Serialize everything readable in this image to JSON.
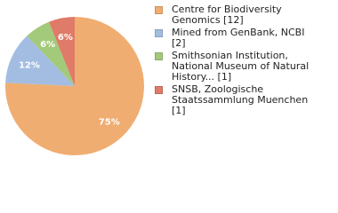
{
  "chart_data": {
    "type": "pie",
    "categories": [
      "Centre for Biodiversity Genomics [12]",
      "Mined from GenBank, NCBI [2]",
      "Smithsonian Institution, National Museum of Natural History... [1]",
      "SNSB, Zoologische Staatssammlung Muenchen [1]"
    ],
    "values": [
      75,
      12,
      6,
      6
    ],
    "value_labels": [
      "75%",
      "12%",
      "6%",
      "6%"
    ],
    "colors": [
      "#f0ad71",
      "#a3bde2",
      "#a3c97a",
      "#df7b68"
    ]
  }
}
